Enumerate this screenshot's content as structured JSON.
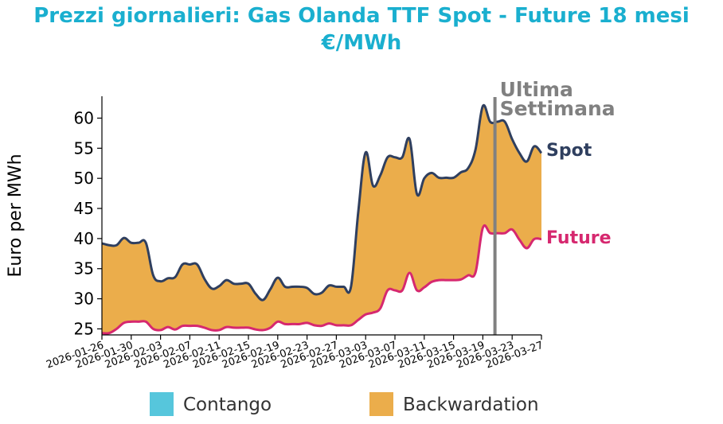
{
  "chart_data": {
    "type": "area",
    "title": "Prezzi giornalieri: Gas Olanda TTF Spot - Future 18 mesi",
    "subtitle": "€/MWh",
    "ylabel": "Euro per MWh",
    "xlabel": "",
    "ylim": [
      24,
      63.5
    ],
    "yticks": [
      25,
      30,
      35,
      40,
      45,
      50,
      55,
      60
    ],
    "xticks": [
      "2026-01-26",
      "2026-01-30",
      "2026-02-03",
      "2026-02-07",
      "2026-02-11",
      "2026-02-15",
      "2026-02-19",
      "2026-02-23",
      "2026-02-27",
      "2026-03-03",
      "2026-03-07",
      "2026-03-11",
      "2026-03-15",
      "2026-03-19",
      "2026-03-23",
      "2026-03-27"
    ],
    "grid": false,
    "colors": {
      "title": "#1aafcf",
      "spot": "#2f3f5f",
      "future": "#d6286f",
      "contango": "#56c6dc",
      "backwardation": "#ebad4b",
      "marker": "#808080"
    },
    "x": [
      "2026-01-26",
      "2026-01-27",
      "2026-01-28",
      "2026-01-29",
      "2026-01-30",
      "2026-01-31",
      "2026-02-01",
      "2026-02-02",
      "2026-02-03",
      "2026-02-04",
      "2026-02-05",
      "2026-02-06",
      "2026-02-07",
      "2026-02-08",
      "2026-02-09",
      "2026-02-10",
      "2026-02-11",
      "2026-02-12",
      "2026-02-13",
      "2026-02-14",
      "2026-02-15",
      "2026-02-16",
      "2026-02-17",
      "2026-02-18",
      "2026-02-19",
      "2026-02-20",
      "2026-02-21",
      "2026-02-22",
      "2026-02-23",
      "2026-02-24",
      "2026-02-25",
      "2026-02-26",
      "2026-02-27",
      "2026-02-28",
      "2026-03-01",
      "2026-03-02",
      "2026-03-03",
      "2026-03-04",
      "2026-03-05",
      "2026-03-06",
      "2026-03-07",
      "2026-03-08",
      "2026-03-09",
      "2026-03-10",
      "2026-03-11",
      "2026-03-12",
      "2026-03-13",
      "2026-03-14",
      "2026-03-15",
      "2026-03-16",
      "2026-03-17",
      "2026-03-18",
      "2026-03-19",
      "2026-03-20",
      "2026-03-21",
      "2026-03-22",
      "2026-03-23",
      "2026-03-24",
      "2026-03-25",
      "2026-03-26",
      "2026-03-27"
    ],
    "series": [
      {
        "name": "Spot",
        "values": [
          39.2,
          38.9,
          38.9,
          40.1,
          39.3,
          39.3,
          39.3,
          33.9,
          32.9,
          33.4,
          33.6,
          35.7,
          35.7,
          35.7,
          33.3,
          31.7,
          32.1,
          33.1,
          32.5,
          32.5,
          32.5,
          30.8,
          29.8,
          31.6,
          33.5,
          32.0,
          32.0,
          32.0,
          31.8,
          30.8,
          31.0,
          32.2,
          32.0,
          32.0,
          32.0,
          44.5,
          54.3,
          48.8,
          50.5,
          53.5,
          53.5,
          53.5,
          56.5,
          47.4,
          50.0,
          50.9,
          50.1,
          50.1,
          50.1,
          51.0,
          51.7,
          54.8,
          62.0,
          59.4,
          59.4,
          59.4,
          56.5,
          54.2,
          52.8,
          55.3,
          54.2
        ]
      },
      {
        "name": "Future",
        "values": [
          24.3,
          24.3,
          25.0,
          26.0,
          26.2,
          26.2,
          26.2,
          25.0,
          24.8,
          25.3,
          24.9,
          25.5,
          25.5,
          25.5,
          25.2,
          24.8,
          24.8,
          25.3,
          25.2,
          25.2,
          25.2,
          24.9,
          24.8,
          25.2,
          26.2,
          25.8,
          25.8,
          25.8,
          26.0,
          25.6,
          25.5,
          25.9,
          25.6,
          25.6,
          25.6,
          26.5,
          27.4,
          27.7,
          28.4,
          31.4,
          31.4,
          31.4,
          34.3,
          31.4,
          31.9,
          32.8,
          33.1,
          33.1,
          33.1,
          33.2,
          33.9,
          34.4,
          41.8,
          40.9,
          40.9,
          40.9,
          41.5,
          39.8,
          38.4,
          39.9,
          39.9
        ]
      }
    ],
    "series_labels": {
      "spot": "Spot",
      "future": "Future"
    },
    "annotation": {
      "date": "2026-03-20",
      "label_line1": "Ultima",
      "label_line2": "Settimana"
    },
    "legend": {
      "placement": "bottom",
      "items": [
        {
          "name": "Contango",
          "color": "#56c6dc"
        },
        {
          "name": "Backwardation",
          "color": "#ebad4b"
        }
      ]
    }
  }
}
